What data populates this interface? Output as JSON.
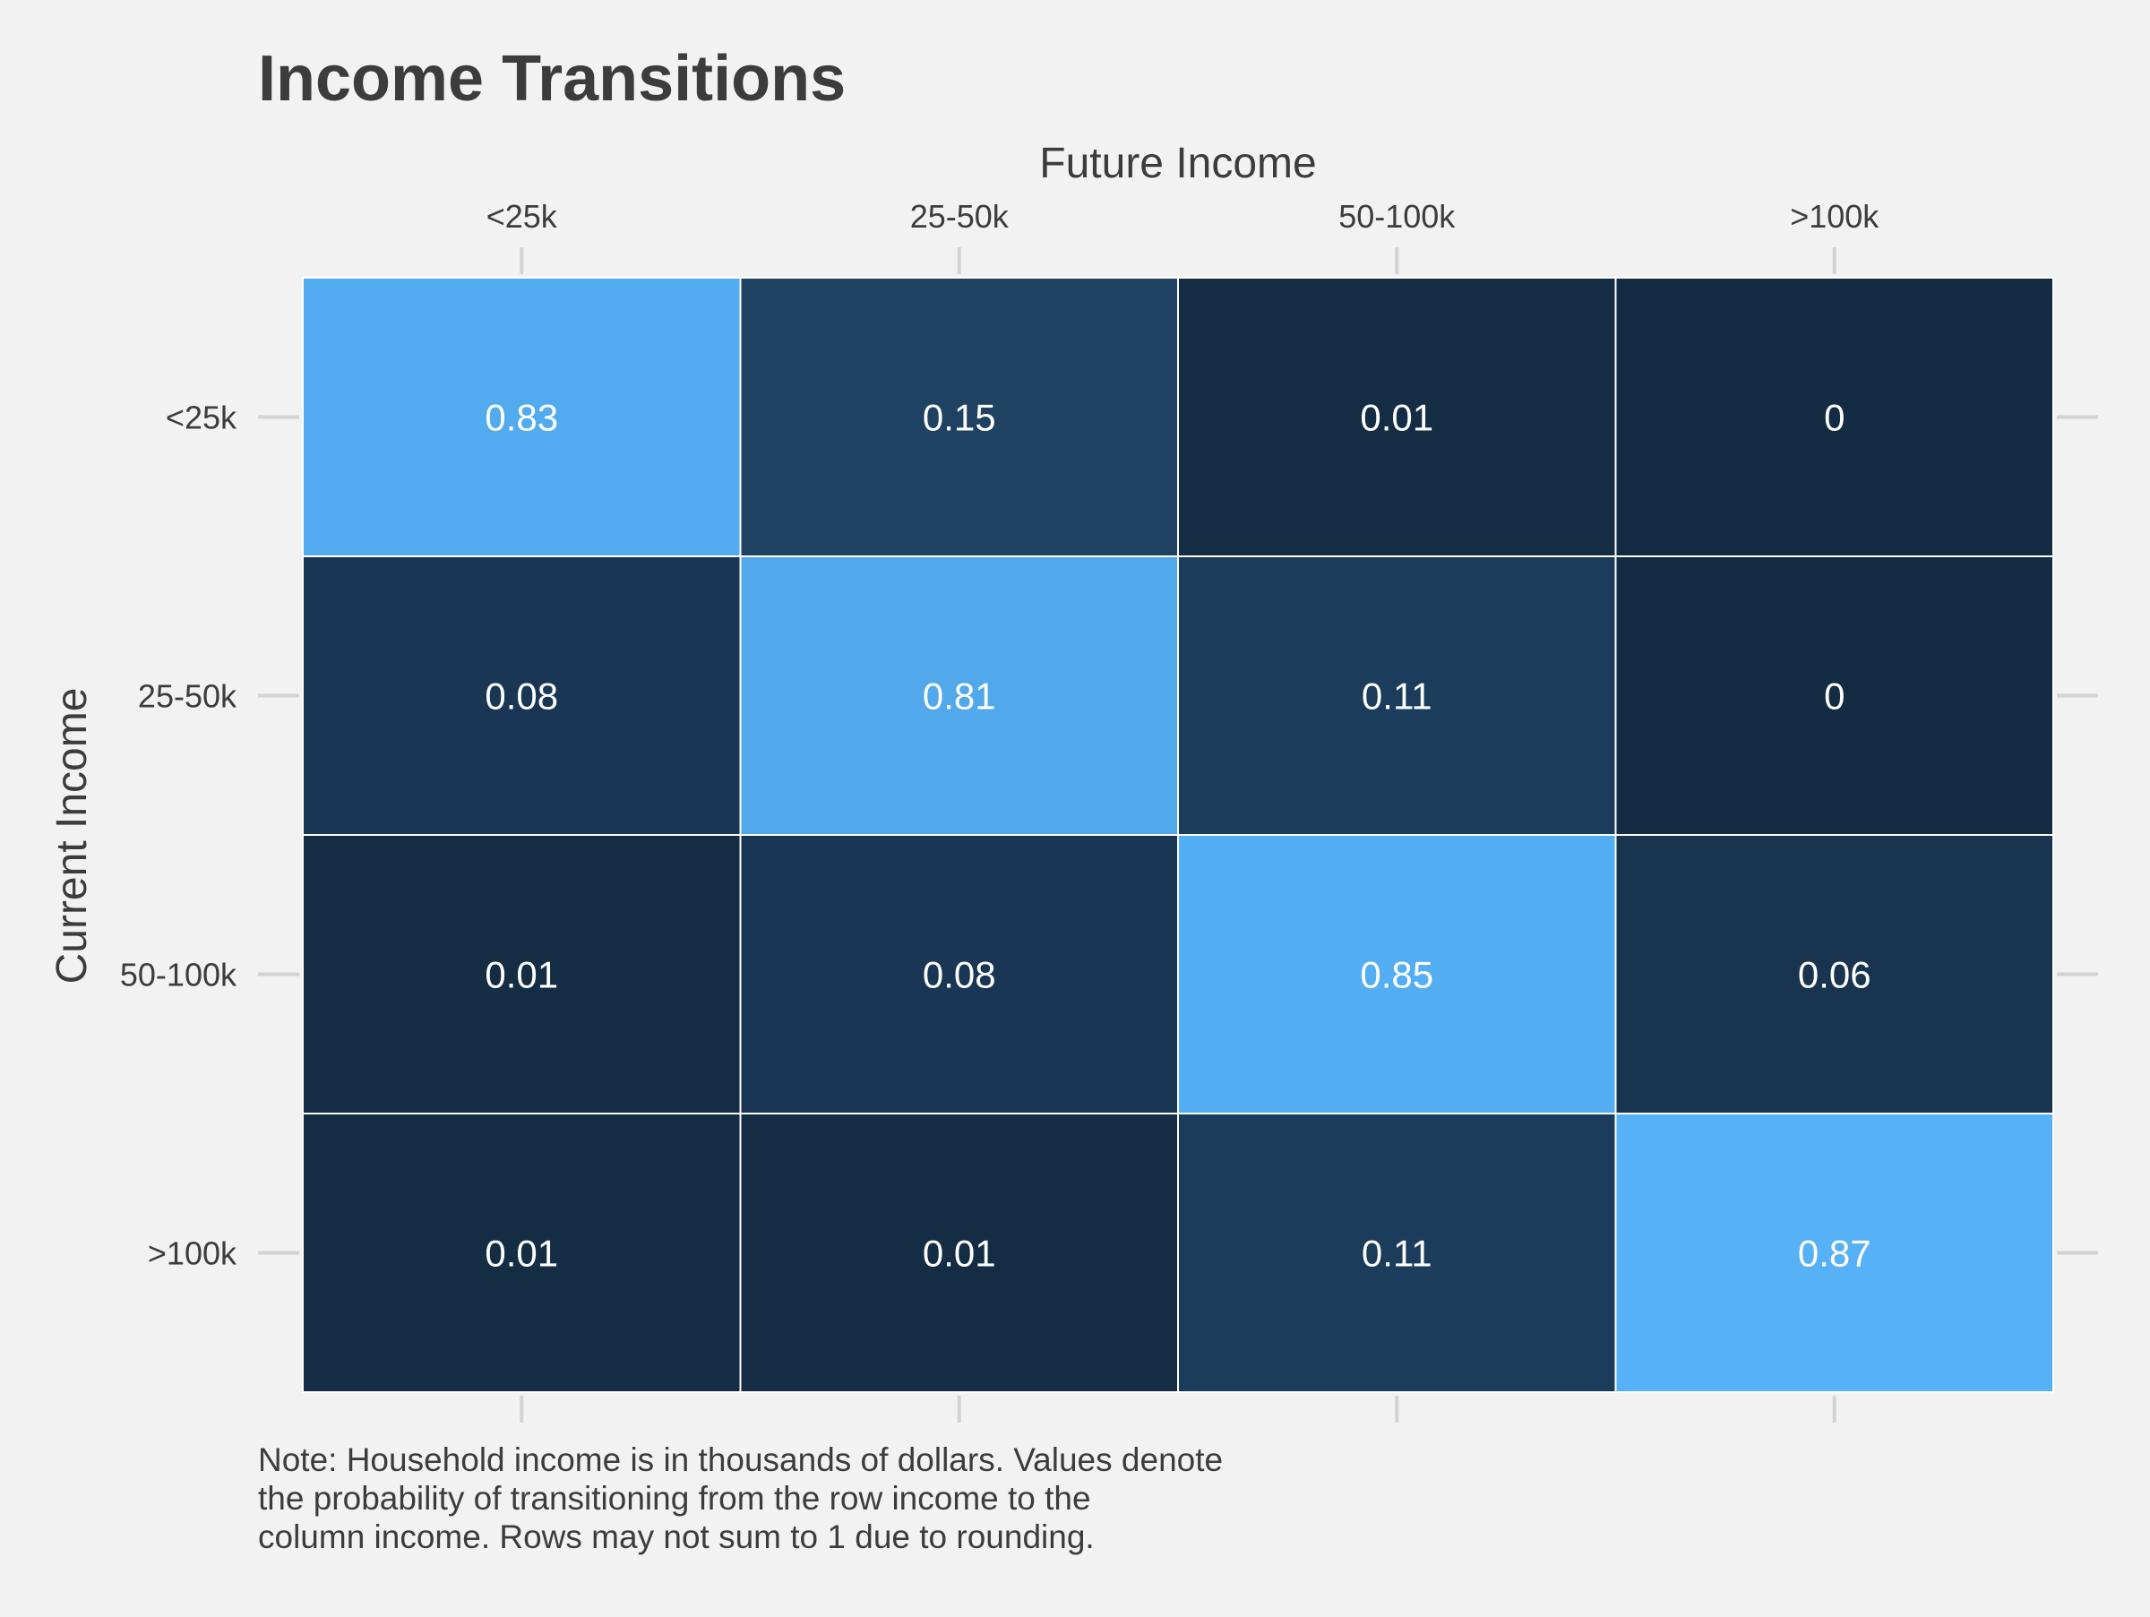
{
  "chart_data": {
    "type": "heatmap",
    "title": "Income Transitions",
    "xlabel": "Future Income",
    "ylabel": "Current Income",
    "x_categories": [
      "<25k",
      "25-50k",
      "50-100k",
      ">100k"
    ],
    "y_categories": [
      "<25k",
      "25-50k",
      "50-100k",
      ">100k"
    ],
    "x_axis_position": "top",
    "values": [
      [
        0.83,
        0.15,
        0.01,
        0
      ],
      [
        0.08,
        0.81,
        0.11,
        0
      ],
      [
        0.01,
        0.08,
        0.85,
        0.06
      ],
      [
        0.01,
        0.01,
        0.11,
        0.87
      ]
    ],
    "value_labels": [
      [
        "0.83",
        "0.15",
        "0.01",
        "0"
      ],
      [
        "0.08",
        "0.81",
        "0.11",
        "0"
      ],
      [
        "0.01",
        "0.08",
        "0.85",
        "0.06"
      ],
      [
        "0.01",
        "0.01",
        "0.11",
        "0.87"
      ]
    ],
    "color_scale": {
      "low": "#132b43",
      "high": "#56b1f7"
    },
    "cell_border_color": "#ffffff",
    "label_color": "#ffffff",
    "background": "#f2f2f2",
    "grid": false,
    "legend": "none",
    "caption_lines": [
      "Note: Household income is in thousands of dollars. Values denote",
      "the probability of transitioning from the row income to the",
      "column income. Rows may not sum to 1 due to rounding."
    ]
  }
}
